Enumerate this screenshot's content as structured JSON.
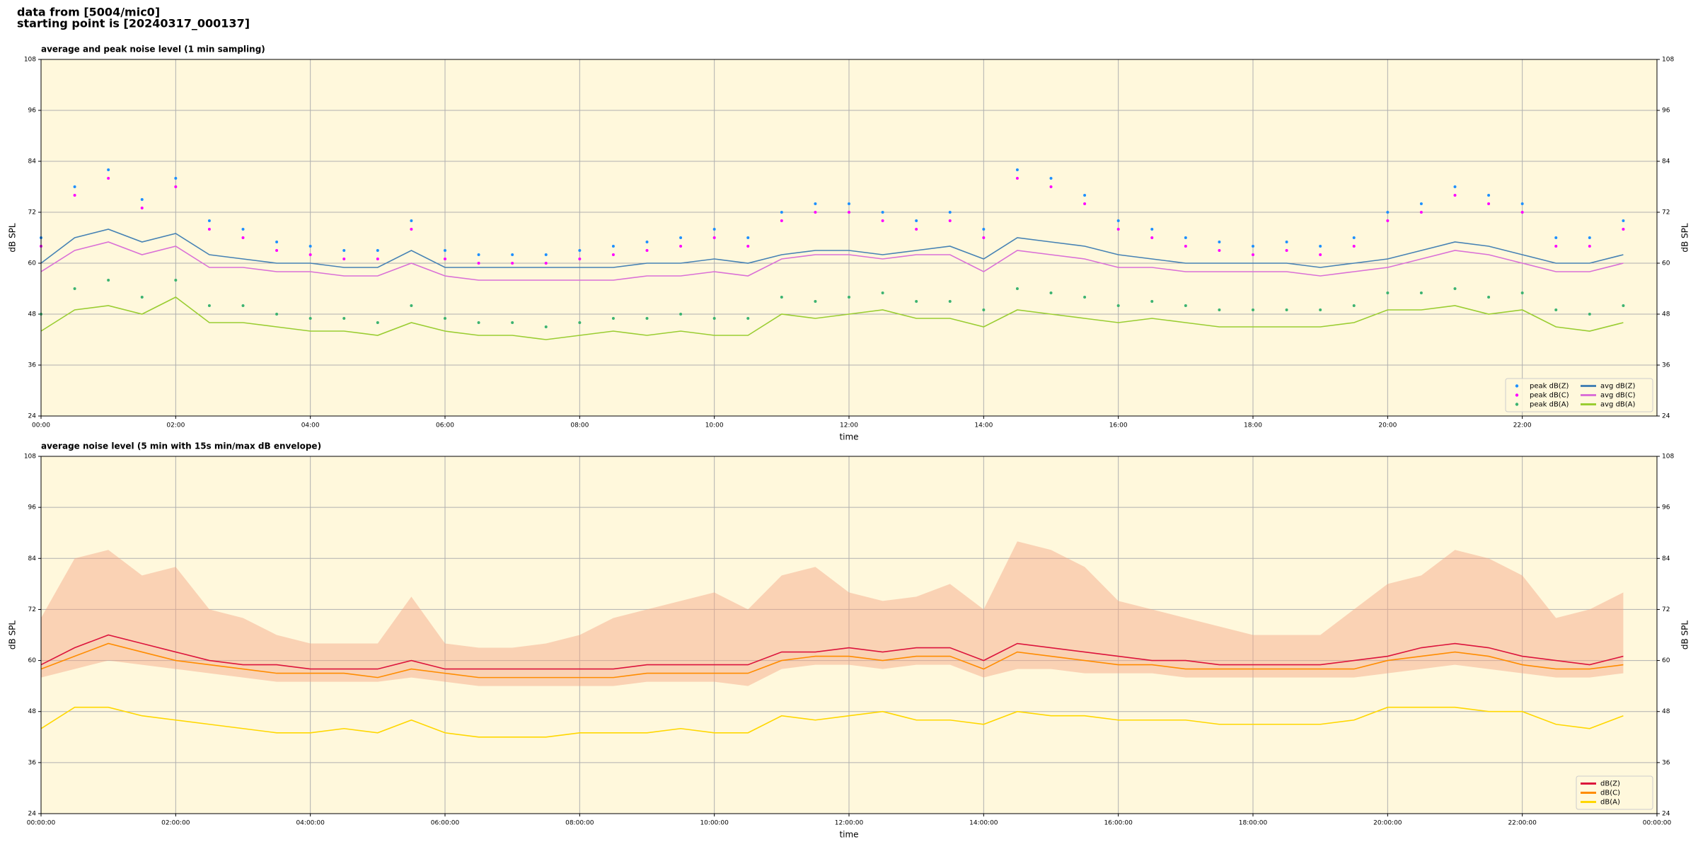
{
  "header": {
    "lines": [
      "data from [5004/mic0]",
      "starting point is [20240317_000137]"
    ]
  },
  "chart_data": [
    {
      "type": "line",
      "title": "average and peak noise level (1 min sampling)",
      "xlabel": "time",
      "ylabel": "dB SPL",
      "xlim": [
        0,
        24
      ],
      "ylim": [
        24,
        108
      ],
      "yticks": [
        24,
        36,
        48,
        60,
        72,
        84,
        96,
        108
      ],
      "xticks": [
        {
          "value": 0,
          "label": "00:00"
        },
        {
          "value": 2,
          "label": "02:00"
        },
        {
          "value": 4,
          "label": "04:00"
        },
        {
          "value": 6,
          "label": "06:00"
        },
        {
          "value": 8,
          "label": "08:00"
        },
        {
          "value": 10,
          "label": "10:00"
        },
        {
          "value": 12,
          "label": "12:00"
        },
        {
          "value": 14,
          "label": "14:00"
        },
        {
          "value": 16,
          "label": "16:00"
        },
        {
          "value": 18,
          "label": "18:00"
        },
        {
          "value": 20,
          "label": "20:00"
        },
        {
          "value": 22,
          "label": "22:00"
        }
      ],
      "grid": true,
      "background": "#fff8dc",
      "legend": "lower right",
      "legend_columns": 2,
      "x": [
        0,
        0.5,
        1,
        1.5,
        2,
        2.5,
        3,
        3.5,
        4,
        4.5,
        5,
        5.5,
        6,
        6.5,
        7,
        7.5,
        8,
        8.5,
        9,
        9.5,
        10,
        10.5,
        11,
        11.5,
        12,
        12.5,
        13,
        13.5,
        14,
        14.5,
        15,
        15.5,
        16,
        16.5,
        17,
        17.5,
        18,
        18.5,
        19,
        19.5,
        20,
        20.5,
        21,
        21.5,
        22,
        22.5,
        23,
        23.5
      ],
      "series": [
        {
          "name": "peak dB(Z)",
          "kind": "scatter",
          "color": "#1e90ff",
          "values": [
            66,
            78,
            82,
            75,
            80,
            70,
            68,
            65,
            64,
            63,
            63,
            70,
            63,
            62,
            62,
            62,
            63,
            64,
            65,
            66,
            68,
            66,
            72,
            74,
            74,
            72,
            70,
            72,
            68,
            82,
            80,
            76,
            70,
            68,
            66,
            65,
            64,
            65,
            64,
            66,
            72,
            74,
            78,
            76,
            74,
            66,
            66,
            70
          ]
        },
        {
          "name": "peak dB(C)",
          "kind": "scatter",
          "color": "#ff00ff",
          "values": [
            64,
            76,
            80,
            73,
            78,
            68,
            66,
            63,
            62,
            61,
            61,
            68,
            61,
            60,
            60,
            60,
            61,
            62,
            63,
            64,
            66,
            64,
            70,
            72,
            72,
            70,
            68,
            70,
            66,
            80,
            78,
            74,
            68,
            66,
            64,
            63,
            62,
            63,
            62,
            64,
            70,
            72,
            76,
            74,
            72,
            64,
            64,
            68
          ]
        },
        {
          "name": "peak dB(A)",
          "kind": "scatter",
          "color": "#3cb371",
          "values": [
            48,
            54,
            56,
            52,
            56,
            50,
            50,
            48,
            47,
            47,
            46,
            50,
            47,
            46,
            46,
            45,
            46,
            47,
            47,
            48,
            47,
            47,
            52,
            51,
            52,
            53,
            51,
            51,
            49,
            54,
            53,
            52,
            50,
            51,
            50,
            49,
            49,
            49,
            49,
            50,
            53,
            53,
            54,
            52,
            53,
            49,
            48,
            50
          ]
        },
        {
          "name": "avg dB(Z)",
          "kind": "line",
          "color": "#4682b4",
          "values": [
            60,
            66,
            68,
            65,
            67,
            62,
            61,
            60,
            60,
            59,
            59,
            63,
            59,
            59,
            59,
            59,
            59,
            59,
            60,
            60,
            61,
            60,
            62,
            63,
            63,
            62,
            63,
            64,
            61,
            66,
            65,
            64,
            62,
            61,
            60,
            60,
            60,
            60,
            59,
            60,
            61,
            63,
            65,
            64,
            62,
            60,
            60,
            62
          ]
        },
        {
          "name": "avg dB(C)",
          "kind": "line",
          "color": "#da70d6",
          "values": [
            58,
            63,
            65,
            62,
            64,
            59,
            59,
            58,
            58,
            57,
            57,
            60,
            57,
            56,
            56,
            56,
            56,
            56,
            57,
            57,
            58,
            57,
            61,
            62,
            62,
            61,
            62,
            62,
            58,
            63,
            62,
            61,
            59,
            59,
            58,
            58,
            58,
            58,
            57,
            58,
            59,
            61,
            63,
            62,
            60,
            58,
            58,
            60
          ]
        },
        {
          "name": "avg dB(A)",
          "kind": "line",
          "color": "#9acd32",
          "values": [
            44,
            49,
            50,
            48,
            52,
            46,
            46,
            45,
            44,
            44,
            43,
            46,
            44,
            43,
            43,
            42,
            43,
            44,
            43,
            44,
            43,
            43,
            48,
            47,
            48,
            49,
            47,
            47,
            45,
            49,
            48,
            47,
            46,
            47,
            46,
            45,
            45,
            45,
            45,
            46,
            49,
            49,
            50,
            48,
            49,
            45,
            44,
            46
          ]
        }
      ]
    },
    {
      "type": "line",
      "title": "average noise level (5 min with 15s min/max dB envelope)",
      "xlabel": "time",
      "ylabel": "dB SPL",
      "xlim": [
        0,
        24
      ],
      "ylim": [
        24,
        108
      ],
      "yticks": [
        24,
        36,
        48,
        60,
        72,
        84,
        96,
        108
      ],
      "xticks": [
        {
          "value": 0,
          "label": "00:00:00"
        },
        {
          "value": 2,
          "label": "02:00:00"
        },
        {
          "value": 4,
          "label": "04:00:00"
        },
        {
          "value": 6,
          "label": "06:00:00"
        },
        {
          "value": 8,
          "label": "08:00:00"
        },
        {
          "value": 10,
          "label": "10:00:00"
        },
        {
          "value": 12,
          "label": "12:00:00"
        },
        {
          "value": 14,
          "label": "14:00:00"
        },
        {
          "value": 16,
          "label": "16:00:00"
        },
        {
          "value": 18,
          "label": "18:00:00"
        },
        {
          "value": 20,
          "label": "20:00:00"
        },
        {
          "value": 22,
          "label": "22:00:00"
        },
        {
          "value": 24,
          "label": "00:00:00"
        }
      ],
      "grid": true,
      "background": "#fff8dc",
      "legend": "lower right",
      "legend_columns": 1,
      "x": [
        0,
        0.5,
        1,
        1.5,
        2,
        2.5,
        3,
        3.5,
        4,
        4.5,
        5,
        5.5,
        6,
        6.5,
        7,
        7.5,
        8,
        8.5,
        9,
        9.5,
        10,
        10.5,
        11,
        11.5,
        12,
        12.5,
        13,
        13.5,
        14,
        14.5,
        15,
        15.5,
        16,
        16.5,
        17,
        17.5,
        18,
        18.5,
        19,
        19.5,
        20,
        20.5,
        21,
        21.5,
        22,
        22.5,
        23,
        23.5
      ],
      "envelope": {
        "color": "#f4a582",
        "lower": [
          56,
          58,
          60,
          59,
          58,
          57,
          56,
          55,
          55,
          55,
          55,
          56,
          55,
          54,
          54,
          54,
          54,
          54,
          55,
          55,
          55,
          54,
          58,
          59,
          59,
          58,
          59,
          59,
          56,
          58,
          58,
          57,
          57,
          57,
          56,
          56,
          56,
          56,
          56,
          56,
          57,
          58,
          59,
          58,
          57,
          56,
          56,
          57
        ],
        "upper": [
          70,
          84,
          86,
          80,
          82,
          72,
          70,
          66,
          64,
          64,
          64,
          75,
          64,
          63,
          63,
          64,
          66,
          70,
          72,
          74,
          76,
          72,
          80,
          82,
          76,
          74,
          75,
          78,
          72,
          88,
          86,
          82,
          74,
          72,
          70,
          68,
          66,
          66,
          66,
          72,
          78,
          80,
          86,
          84,
          80,
          70,
          72,
          76
        ]
      },
      "series": [
        {
          "name": "dB(Z)",
          "kind": "line",
          "color": "#dc143c",
          "values": [
            59,
            63,
            66,
            64,
            62,
            60,
            59,
            59,
            58,
            58,
            58,
            60,
            58,
            58,
            58,
            58,
            58,
            58,
            59,
            59,
            59,
            59,
            62,
            62,
            63,
            62,
            63,
            63,
            60,
            64,
            63,
            62,
            61,
            60,
            60,
            59,
            59,
            59,
            59,
            60,
            61,
            63,
            64,
            63,
            61,
            60,
            59,
            61
          ]
        },
        {
          "name": "dB(C)",
          "kind": "line",
          "color": "#ff8c00",
          "values": [
            58,
            61,
            64,
            62,
            60,
            59,
            58,
            57,
            57,
            57,
            56,
            58,
            57,
            56,
            56,
            56,
            56,
            56,
            57,
            57,
            57,
            57,
            60,
            61,
            61,
            60,
            61,
            61,
            58,
            62,
            61,
            60,
            59,
            59,
            58,
            58,
            58,
            58,
            58,
            58,
            60,
            61,
            62,
            61,
            59,
            58,
            58,
            59
          ]
        },
        {
          "name": "dB(A)",
          "kind": "line",
          "color": "#ffd700",
          "values": [
            44,
            49,
            49,
            47,
            46,
            45,
            44,
            43,
            43,
            44,
            43,
            46,
            43,
            42,
            42,
            42,
            43,
            43,
            43,
            44,
            43,
            43,
            47,
            46,
            47,
            48,
            46,
            46,
            45,
            48,
            47,
            47,
            46,
            46,
            46,
            45,
            45,
            45,
            45,
            46,
            49,
            49,
            49,
            48,
            48,
            45,
            44,
            47
          ]
        }
      ]
    }
  ]
}
